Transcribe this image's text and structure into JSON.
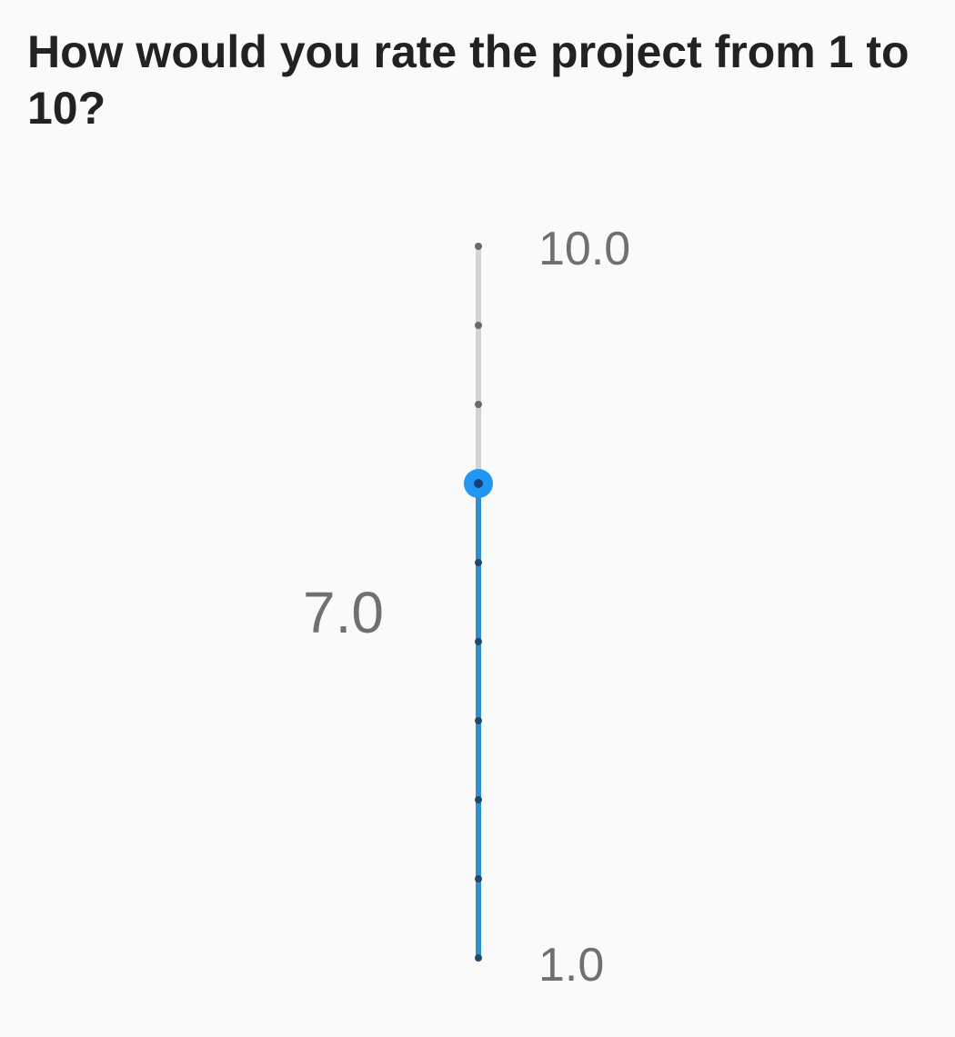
{
  "question": {
    "text": "How would you rate the project from 1 to 10?"
  },
  "rating_slider": {
    "min": 1,
    "max": 10,
    "step": 1,
    "value": 7,
    "orientation": "vertical",
    "max_label": "10.0",
    "current_label": "7.0",
    "min_label": "1.0"
  },
  "colors": {
    "background": "#fafafa",
    "question_text": "#222222",
    "label_text": "#707070",
    "active_track": "#2f8fd1",
    "inactive_track": "#d4d4d4",
    "thumb": "#2196f3"
  }
}
